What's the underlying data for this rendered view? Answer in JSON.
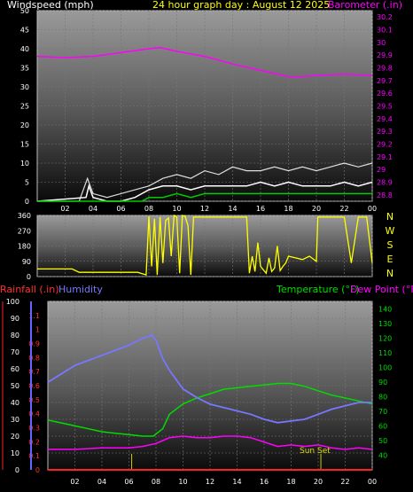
{
  "header": {
    "wind_title": "Windspeed (mph)",
    "graph_title": "24 hour graph day : August 12 2025",
    "baro_title": "Barometer (.in)"
  },
  "colors": {
    "windspeed": "#ffffff",
    "gust_fill": "#ffffff",
    "avg_wind": "#00cc00",
    "barometer": "#ff00ff",
    "direction": "#ffff00",
    "rain": "#ff2020",
    "humidity": "#7777ff",
    "temperature": "#00dd00",
    "dewpoint": "#ff00ff",
    "sun_marker": "#cccc00"
  },
  "chart_data": [
    {
      "type": "line",
      "name": "wind-baro",
      "x_ticks": [
        "02",
        "04",
        "06",
        "08",
        "10",
        "12",
        "14",
        "16",
        "18",
        "20",
        "22",
        "00"
      ],
      "left_axis": {
        "label": "Windspeed (mph)",
        "ticks": [
          0,
          5,
          10,
          15,
          20,
          25,
          30,
          35,
          40,
          45,
          50
        ],
        "range": [
          0,
          50
        ]
      },
      "right_axis": {
        "label": "Barometer (.in)",
        "ticks": [
          "28.8",
          "28.9",
          "29",
          "29.1",
          "29.2",
          "29.3",
          "29.4",
          "29.5",
          "29.6",
          "29.7",
          "29.8",
          "29.9",
          "30",
          "30.1",
          "30.2"
        ],
        "range": [
          28.75,
          30.25
        ]
      },
      "series": [
        {
          "name": "Barometer",
          "axis": "right",
          "x": [
            0,
            2,
            4,
            6,
            8,
            8.8,
            10,
            12,
            14,
            16,
            18,
            19,
            20,
            22,
            24
          ],
          "y": [
            29.89,
            29.88,
            29.89,
            29.92,
            29.95,
            29.96,
            29.93,
            29.89,
            29.83,
            29.78,
            29.73,
            29.73,
            29.74,
            29.75,
            29.74
          ]
        },
        {
          "name": "Windspeed",
          "axis": "left",
          "x": [
            0,
            3.5,
            3.7,
            4,
            5,
            6,
            7,
            7.5,
            8,
            9,
            10,
            11,
            12,
            13,
            14,
            15,
            16,
            17,
            18,
            19,
            20,
            21,
            22,
            23,
            24
          ],
          "y": [
            0,
            1,
            4,
            1,
            0,
            0,
            1,
            2,
            3,
            4,
            4,
            3,
            4,
            4,
            4,
            4,
            5,
            4,
            5,
            4,
            4,
            4,
            5,
            4,
            5
          ]
        },
        {
          "name": "Gust",
          "axis": "left",
          "x": [
            0,
            3,
            3.6,
            4,
            5,
            6,
            7,
            8,
            9,
            10,
            11,
            12,
            13,
            14,
            15,
            16,
            17,
            18,
            19,
            20,
            21,
            22,
            23,
            24
          ],
          "y": [
            0,
            0,
            6,
            2,
            1,
            2,
            3,
            4,
            6,
            7,
            6,
            8,
            7,
            9,
            8,
            8,
            9,
            8,
            9,
            8,
            9,
            10,
            9,
            10
          ]
        },
        {
          "name": "Average wind",
          "axis": "left",
          "x": [
            0,
            7.5,
            8,
            9,
            10,
            11,
            12,
            13,
            14,
            15,
            16,
            17,
            18,
            19,
            20,
            21,
            22,
            23,
            24
          ],
          "y": [
            0,
            0,
            1,
            1,
            2,
            1,
            2,
            2,
            2,
            2,
            2,
            2,
            2,
            2,
            2,
            2,
            2,
            2,
            2
          ]
        }
      ]
    },
    {
      "type": "line",
      "name": "wind-direction",
      "right_labels": [
        "N",
        "W",
        "S",
        "E",
        "N"
      ],
      "left_axis": {
        "ticks": [
          0,
          90,
          180,
          270,
          360
        ],
        "range": [
          0,
          360
        ]
      },
      "series": [
        {
          "name": "Direction",
          "x": [
            0,
            2.5,
            3,
            7.2,
            7.8,
            8,
            8.2,
            8.4,
            8.6,
            8.8,
            9,
            9.2,
            9.4,
            9.6,
            9.8,
            10,
            10.2,
            10.4,
            10.6,
            10.8,
            11,
            11.2,
            11.6,
            12,
            13,
            14,
            15,
            15.2,
            15.4,
            15.6,
            15.8,
            16,
            16.2,
            16.4,
            16.6,
            16.8,
            17,
            17.2,
            17.4,
            17.6,
            17.8,
            18,
            18.5,
            19,
            19.5,
            20,
            20.1,
            21,
            22,
            22.5,
            23,
            23.3,
            23.6,
            24
          ],
          "y": [
            45,
            45,
            25,
            25,
            10,
            355,
            60,
            340,
            10,
            350,
            80,
            330,
            345,
            120,
            360,
            350,
            20,
            360,
            355,
            300,
            10,
            350,
            350,
            350,
            350,
            350,
            350,
            20,
            120,
            30,
            200,
            60,
            40,
            20,
            110,
            30,
            50,
            180,
            35,
            60,
            80,
            120,
            110,
            100,
            120,
            90,
            350,
            350,
            350,
            80,
            350,
            350,
            350,
            80
          ]
        }
      ]
    },
    {
      "type": "line",
      "name": "temp-humidity-rain",
      "x_ticks": [
        "02",
        "04",
        "06",
        "08",
        "10",
        "12",
        "14",
        "16",
        "18",
        "20",
        "22",
        "00"
      ],
      "left_axis": {
        "label": "Rainfall (.in)",
        "ticks": [
          "0",
          "0.1",
          "0.2",
          "0.3",
          "0.4",
          "0.5",
          "0.6",
          "0.7",
          "0.8",
          "0.9",
          "1",
          "1.1"
        ],
        "range": [
          0,
          1.2
        ]
      },
      "humidity_axis": {
        "label": "Humidity",
        "ticks": [
          0,
          10,
          20,
          30,
          40,
          50,
          60,
          70,
          80,
          90,
          100
        ],
        "range": [
          0,
          100
        ]
      },
      "right_axis": {
        "ticks": [
          40,
          50,
          60,
          70,
          80,
          90,
          100,
          110,
          120,
          130,
          140
        ],
        "range": [
          30,
          145
        ]
      },
      "temperature_label": "Temperature (°F)",
      "dewpoint_label": "Dew Point (°F)",
      "annotation": "Sun Set",
      "sun_markers_hour": [
        6.2,
        20.2
      ],
      "series": [
        {
          "name": "Rainfall",
          "axis": "left",
          "x": [
            0,
            24
          ],
          "y": [
            0,
            0
          ]
        },
        {
          "name": "Humidity",
          "axis": "humidity",
          "x": [
            0,
            1,
            2,
            3,
            4,
            5,
            6,
            7,
            7.7,
            8,
            8.5,
            9,
            10,
            11,
            12,
            13,
            14,
            15,
            16,
            17,
            18,
            19,
            20,
            21,
            22,
            23,
            24
          ],
          "y": [
            52,
            57,
            62,
            65,
            68,
            71,
            74,
            78,
            80,
            77,
            66,
            59,
            48,
            43,
            39,
            37,
            35,
            33,
            30,
            28,
            29,
            30,
            33,
            36,
            38,
            40,
            40
          ]
        },
        {
          "name": "Temperature",
          "axis": "right",
          "x": [
            0,
            1,
            2,
            3,
            4,
            5,
            6,
            7,
            7.8,
            8.5,
            9,
            10,
            11,
            12,
            13,
            14,
            15,
            16,
            17,
            18,
            19,
            20,
            21,
            22,
            23,
            24
          ],
          "y": [
            64,
            62,
            60,
            58,
            56,
            55,
            54,
            53,
            53,
            58,
            68,
            75,
            79,
            82,
            85,
            86,
            87,
            88,
            89,
            89,
            87,
            84,
            81,
            79,
            77,
            75
          ]
        },
        {
          "name": "Dew Point",
          "axis": "right",
          "x": [
            0,
            2,
            4,
            6,
            7,
            8,
            8.5,
            9,
            10,
            11,
            12,
            13,
            14,
            15,
            16,
            17,
            18,
            19,
            20,
            21,
            22,
            23,
            24
          ],
          "y": [
            44,
            44,
            45,
            45,
            46,
            48,
            50,
            52,
            53,
            52,
            52,
            53,
            53,
            52,
            49,
            46,
            47,
            46,
            47,
            45,
            44,
            45,
            44
          ]
        }
      ]
    }
  ]
}
